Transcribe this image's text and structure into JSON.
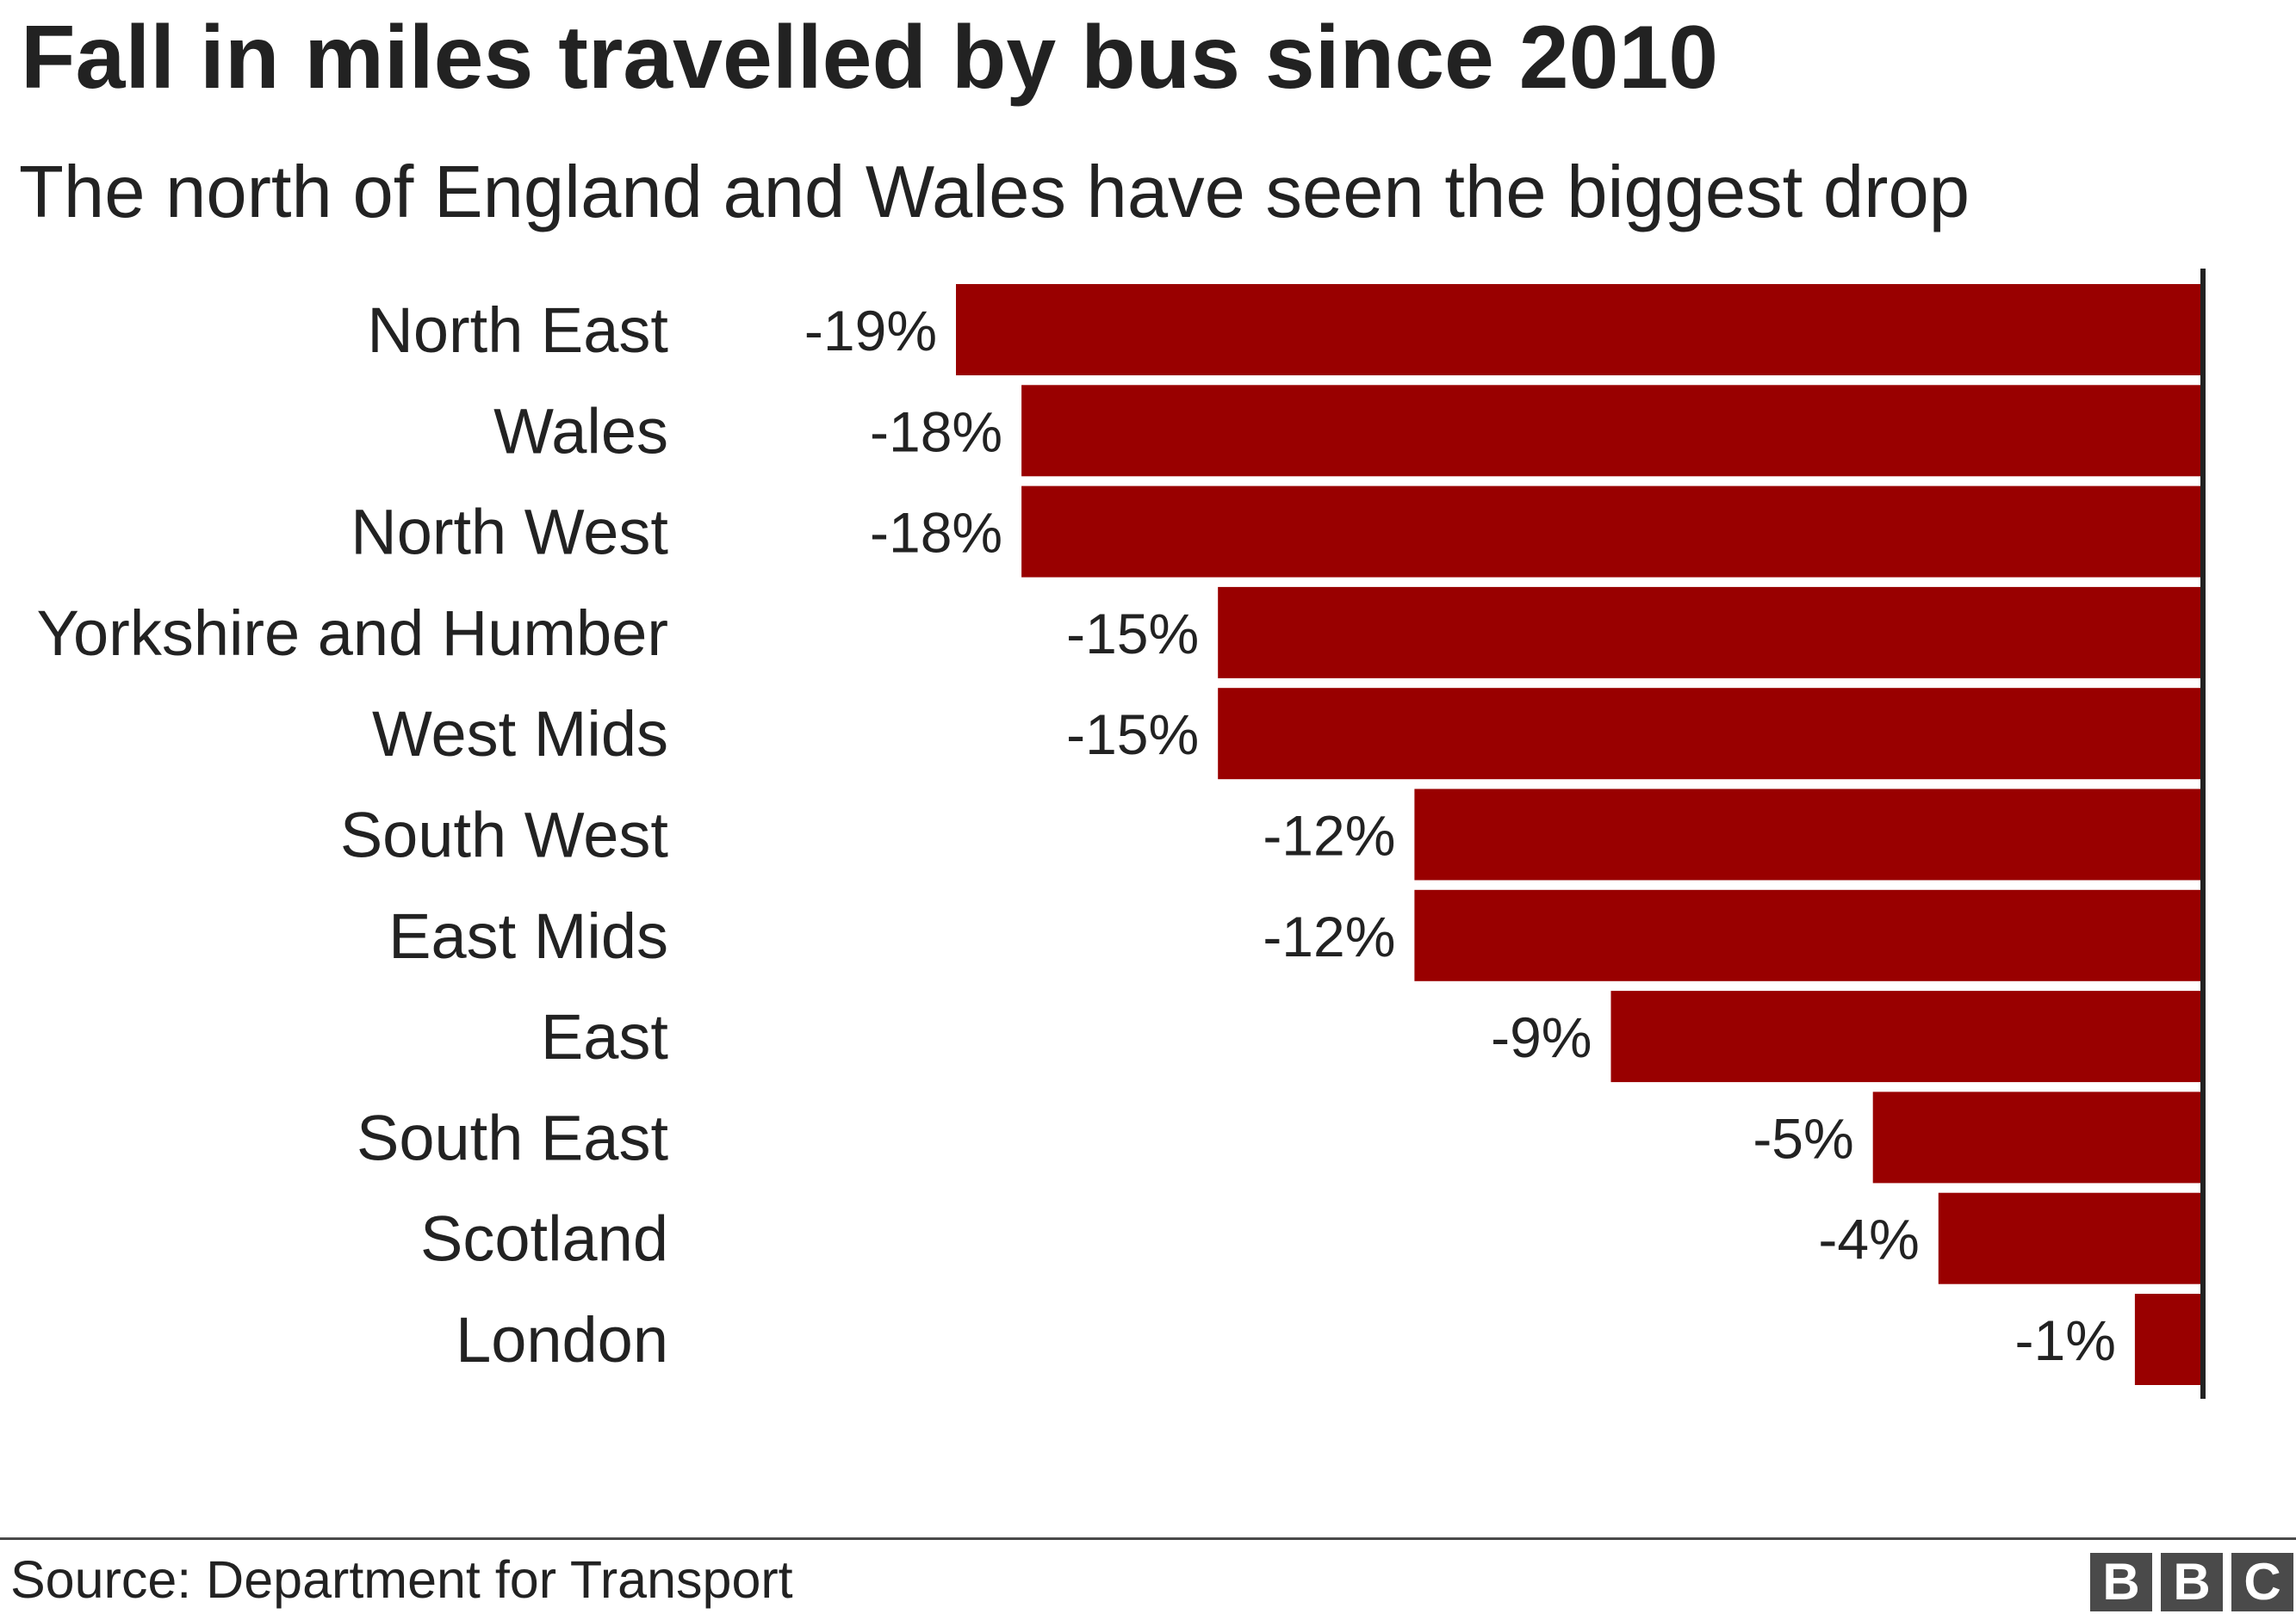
{
  "title": "Fall in miles travelled by bus since 2010",
  "subtitle": "The north of England and Wales have seen the biggest drop",
  "source": "Source: Department for Transport",
  "logo": {
    "letters": [
      "B",
      "B",
      "C"
    ],
    "color": "#4a4a4a"
  },
  "chart_data": {
    "type": "bar",
    "orientation": "horizontal",
    "title": "Fall in miles travelled by bus since 2010",
    "subtitle": "The north of England and Wales have seen the biggest drop",
    "categories": [
      "North East",
      "Wales",
      "North West",
      "Yorkshire and Humber",
      "West Mids",
      "South West",
      "East Mids",
      "East",
      "South East",
      "Scotland",
      "London"
    ],
    "values": [
      -19,
      -18,
      -18,
      -15,
      -15,
      -12,
      -12,
      -9,
      -5,
      -4,
      -1
    ],
    "value_labels": [
      "-19%",
      "-18%",
      "-18%",
      "-15%",
      "-15%",
      "-12%",
      "-12%",
      "-9%",
      "-5%",
      "-4%",
      "-1%"
    ],
    "unit": "%",
    "xlim": [
      -19,
      0
    ],
    "xlabel": "",
    "ylabel": "",
    "grid": false,
    "legend": "none",
    "bar_color": "#990000",
    "axis_color": "#222222"
  }
}
